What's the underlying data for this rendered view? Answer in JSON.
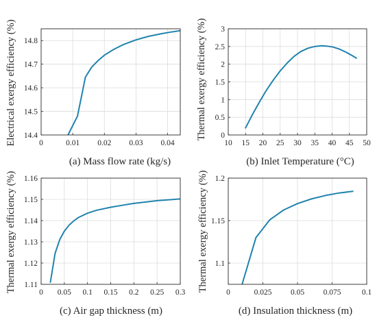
{
  "colors": {
    "series": "#1f82ad",
    "grid": "#dcdcdc",
    "axis": "#262626"
  },
  "chart_data": [
    {
      "type": "line",
      "caption": "(a) Mass flow rate (kg/s)",
      "xlabel": "",
      "ylabel": "Electrical exergy efficiency (%)",
      "xlim": [
        0,
        0.044
      ],
      "ylim": [
        14.4,
        14.85
      ],
      "xticks": [
        0,
        0.01,
        0.02,
        0.03,
        0.04
      ],
      "xticklabels": [
        "0",
        "0.01",
        "0.02",
        "0.03",
        "0.04"
      ],
      "yticks": [
        14.4,
        14.5,
        14.6,
        14.7,
        14.8
      ],
      "yticklabels": [
        "14.4",
        "14.5",
        "14.6",
        "14.7",
        "14.8"
      ],
      "grid": true,
      "series": [
        {
          "x": [
            0.0085,
            0.0115,
            0.014,
            0.016,
            0.018,
            0.02,
            0.023,
            0.026,
            0.03,
            0.034,
            0.038,
            0.041,
            0.044
          ],
          "y": [
            14.4,
            14.48,
            14.645,
            14.688,
            14.715,
            14.738,
            14.763,
            14.783,
            14.803,
            14.818,
            14.829,
            14.836,
            14.842
          ]
        }
      ]
    },
    {
      "type": "line",
      "caption": "(b) Inlet Temperature (°C)",
      "xlabel": "",
      "ylabel": "Thermal exergy efficiency (%)",
      "xlim": [
        10,
        50
      ],
      "ylim": [
        0,
        3
      ],
      "xticks": [
        10,
        15,
        20,
        25,
        30,
        35,
        40,
        45,
        50
      ],
      "xticklabels": [
        "10",
        "15",
        "20",
        "25",
        "30",
        "35",
        "40",
        "45",
        "50"
      ],
      "yticks": [
        0,
        0.5,
        1,
        1.5,
        2,
        2.5,
        3
      ],
      "yticklabels": [
        "0",
        "0.5",
        "1",
        "1.5",
        "2",
        "2.5",
        "3"
      ],
      "grid": true,
      "series": [
        {
          "x": [
            15,
            17,
            19,
            21,
            23,
            25,
            27,
            29,
            31,
            33,
            35,
            37,
            38.5,
            40,
            42,
            44,
            46,
            47
          ],
          "y": [
            0.2,
            0.58,
            0.93,
            1.26,
            1.55,
            1.81,
            2.03,
            2.22,
            2.36,
            2.45,
            2.5,
            2.52,
            2.51,
            2.49,
            2.43,
            2.34,
            2.23,
            2.17
          ]
        }
      ]
    },
    {
      "type": "line",
      "caption": "(c) Air gap thickness (m)",
      "xlabel": "",
      "ylabel": "Thermal exergy efficiency (%)",
      "xlim": [
        0,
        0.3
      ],
      "ylim": [
        1.11,
        1.16
      ],
      "xticks": [
        0,
        0.05,
        0.1,
        0.15,
        0.2,
        0.25,
        0.3
      ],
      "xticklabels": [
        "0",
        "0.05",
        "0.1",
        "0.15",
        "0.2",
        "0.25",
        "0.3"
      ],
      "yticks": [
        1.11,
        1.12,
        1.13,
        1.14,
        1.15,
        1.16
      ],
      "yticklabels": [
        "1.11",
        "1.12",
        "1.13",
        "1.14",
        "1.15",
        "1.16"
      ],
      "grid": true,
      "series": [
        {
          "x": [
            0.02,
            0.03,
            0.04,
            0.05,
            0.06,
            0.07,
            0.08,
            0.1,
            0.12,
            0.15,
            0.18,
            0.2,
            0.25,
            0.3
          ],
          "y": [
            1.111,
            1.1245,
            1.131,
            1.135,
            1.1378,
            1.1398,
            1.1414,
            1.1435,
            1.1449,
            1.1463,
            1.1474,
            1.1481,
            1.1494,
            1.1502
          ]
        }
      ]
    },
    {
      "type": "line",
      "caption": "(d) Insulation thickness (m)",
      "xlabel": "",
      "ylabel": "Thermal exergy efficiency (%)",
      "xlim": [
        0,
        0.1
      ],
      "ylim": [
        1.075,
        1.2
      ],
      "xticks": [
        0,
        0.025,
        0.05,
        0.075,
        0.1
      ],
      "xticklabels": [
        "0",
        "0.025",
        "0.05",
        "0.075",
        "0.1"
      ],
      "yticks": [
        1.1,
        1.15,
        1.2
      ],
      "yticklabels": [
        "1.1",
        "1.15",
        "1.2"
      ],
      "grid": true,
      "series": [
        {
          "x": [
            0.01,
            0.02,
            0.03,
            0.04,
            0.05,
            0.06,
            0.07,
            0.08,
            0.09
          ],
          "y": [
            1.075,
            1.13,
            1.151,
            1.1625,
            1.17,
            1.1755,
            1.1795,
            1.1825,
            1.1845
          ]
        }
      ]
    }
  ]
}
